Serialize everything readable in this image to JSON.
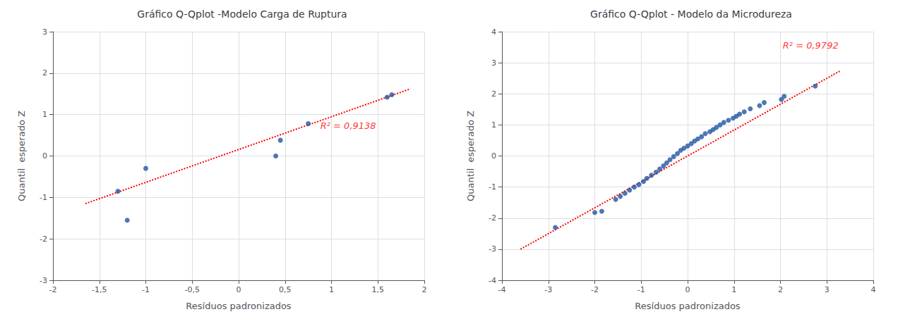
{
  "chart_data": [
    {
      "type": "scatter",
      "title": "Gráfico Q-Qplot -Modelo Carga de Ruptura",
      "xlabel": "Resíduos padronizados",
      "ylabel": "Quantil  esperado Z",
      "xlim": [
        -2,
        2
      ],
      "ylim": [
        -3,
        3
      ],
      "xticks": [
        -2,
        {
          "value": -1.5,
          "label": "-1,5"
        },
        -1,
        {
          "value": -0.5,
          "label": "-0,5"
        },
        0,
        {
          "value": 0.5,
          "label": "0,5"
        },
        1,
        {
          "value": 1.5,
          "label": "1,5"
        },
        2
      ],
      "yticks": [
        -3,
        -2,
        -1,
        0,
        1,
        2,
        3
      ],
      "grid": true,
      "series": [
        {
          "type": "scatter",
          "color": "#2255A0",
          "x": [
            -1.3,
            -1.2,
            -1.0,
            0.4,
            0.45,
            0.75,
            1.6,
            1.65
          ],
          "values": [
            -0.85,
            -1.55,
            -0.3,
            0.0,
            0.38,
            0.78,
            1.42,
            1.48
          ]
        },
        {
          "type": "line",
          "color": "#FF0000",
          "line_style": "dotted",
          "x": [
            -1.65,
            1.85
          ],
          "values": [
            -1.15,
            1.62
          ]
        }
      ],
      "annotations": [
        {
          "text": "R² = 0,9138",
          "x": 0.88,
          "y": 0.62,
          "color": "#FF0000"
        }
      ]
    },
    {
      "type": "scatter",
      "title": "Gráfico Q-Qplot - Modelo da Microdureza",
      "xlabel": "Resíduos padronizados",
      "ylabel": "Quantil  esperado Z",
      "xlim": [
        -4,
        4
      ],
      "ylim": [
        -4,
        4
      ],
      "xticks": [
        -4,
        -3,
        -2,
        -1,
        0,
        1,
        2,
        3,
        4
      ],
      "yticks": [
        -4,
        -3,
        -2,
        -1,
        0,
        1,
        2,
        3,
        4
      ],
      "grid": true,
      "series": [
        {
          "type": "scatter",
          "color": "#2255A0",
          "x": [
            -2.85,
            -2.0,
            -1.85,
            -1.55,
            -1.45,
            -1.35,
            -1.25,
            -1.15,
            -1.05,
            -0.95,
            -0.88,
            -0.78,
            -0.68,
            -0.6,
            -0.52,
            -0.45,
            -0.38,
            -0.3,
            -0.22,
            -0.15,
            -0.08,
            0.0,
            0.08,
            0.15,
            0.22,
            0.3,
            0.38,
            0.48,
            0.55,
            0.62,
            0.7,
            0.78,
            0.88,
            0.98,
            1.05,
            1.12,
            1.22,
            1.35,
            1.55,
            1.65,
            2.02,
            2.08,
            2.75
          ],
          "values": [
            -2.3,
            -1.82,
            -1.78,
            -1.4,
            -1.3,
            -1.2,
            -1.1,
            -1.0,
            -0.92,
            -0.82,
            -0.72,
            -0.62,
            -0.52,
            -0.42,
            -0.32,
            -0.22,
            -0.12,
            -0.02,
            0.08,
            0.18,
            0.25,
            0.32,
            0.4,
            0.48,
            0.55,
            0.62,
            0.72,
            0.78,
            0.85,
            0.92,
            1.0,
            1.08,
            1.15,
            1.22,
            1.28,
            1.35,
            1.42,
            1.52,
            1.62,
            1.72,
            1.82,
            1.92,
            2.25
          ]
        },
        {
          "type": "line",
          "color": "#FF0000",
          "line_style": "dotted",
          "x": [
            -3.6,
            3.3
          ],
          "values": [
            -3.0,
            2.75
          ]
        }
      ],
      "annotations": [
        {
          "text": "R² = 0,9792",
          "x": 2.05,
          "y": 3.4,
          "color": "#FF0000"
        }
      ]
    }
  ]
}
